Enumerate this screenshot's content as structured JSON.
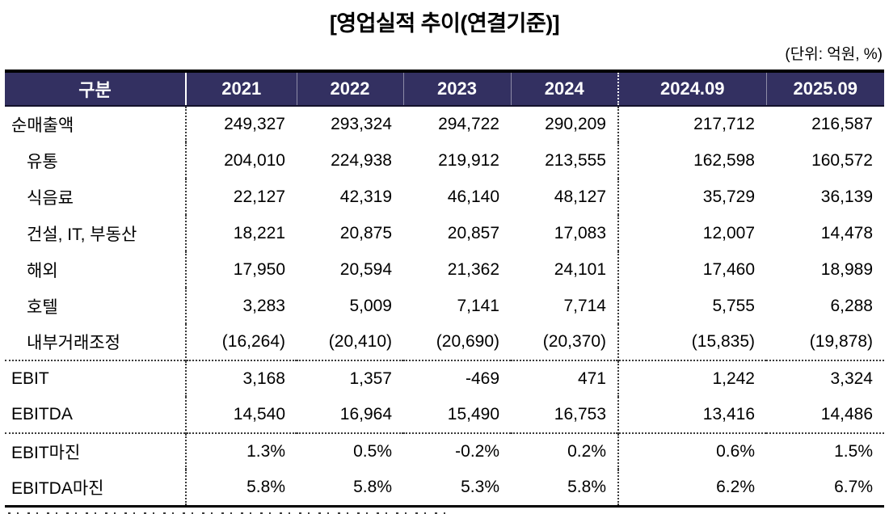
{
  "title": "[영업실적 추이(연결기준)]",
  "unit_note": "(단위: 억원, %)",
  "colors": {
    "header_bg": "#333061",
    "header_text": "#FFFFFF",
    "body_text": "#000000",
    "table_border": "#000000"
  },
  "table": {
    "columns": [
      "구분",
      "2021",
      "2022",
      "2023",
      "2024",
      "2024.09",
      "2025.09"
    ],
    "rows": [
      {
        "label": "순매출액",
        "indent": false,
        "divider_above": false,
        "values": [
          "249,327",
          "293,324",
          "294,722",
          "290,209",
          "217,712",
          "216,587"
        ]
      },
      {
        "label": "유통",
        "indent": true,
        "divider_above": false,
        "values": [
          "204,010",
          "224,938",
          "219,912",
          "213,555",
          "162,598",
          "160,572"
        ]
      },
      {
        "label": "식음료",
        "indent": true,
        "divider_above": false,
        "values": [
          "22,127",
          "42,319",
          "46,140",
          "48,127",
          "35,729",
          "36,139"
        ]
      },
      {
        "label": "건설, IT, 부동산",
        "indent": true,
        "divider_above": false,
        "values": [
          "18,221",
          "20,875",
          "20,857",
          "17,083",
          "12,007",
          "14,478"
        ]
      },
      {
        "label": "해외",
        "indent": true,
        "divider_above": false,
        "values": [
          "17,950",
          "20,594",
          "21,362",
          "24,101",
          "17,460",
          "18,989"
        ]
      },
      {
        "label": "호텔",
        "indent": true,
        "divider_above": false,
        "values": [
          "3,283",
          "5,009",
          "7,141",
          "7,714",
          "5,755",
          "6,288"
        ]
      },
      {
        "label": "내부거래조정",
        "indent": true,
        "divider_above": false,
        "values": [
          "(16,264)",
          "(20,410)",
          "(20,690)",
          "(20,370)",
          "(15,835)",
          "(19,878)"
        ]
      },
      {
        "label": "EBIT",
        "indent": false,
        "divider_above": true,
        "values": [
          "3,168",
          "1,357",
          "-469",
          "471",
          "1,242",
          "3,324"
        ]
      },
      {
        "label": "EBITDA",
        "indent": false,
        "divider_above": false,
        "values": [
          "14,540",
          "16,964",
          "15,490",
          "16,753",
          "13,416",
          "14,486"
        ]
      },
      {
        "label": "EBIT마진",
        "indent": false,
        "divider_above": true,
        "values": [
          "1.3%",
          "0.5%",
          "-0.2%",
          "0.2%",
          "0.6%",
          "1.5%"
        ]
      },
      {
        "label": "EBITDA마진",
        "indent": false,
        "divider_above": false,
        "values": [
          "5.8%",
          "5.8%",
          "5.3%",
          "5.8%",
          "6.2%",
          "6.7%"
        ]
      }
    ]
  }
}
